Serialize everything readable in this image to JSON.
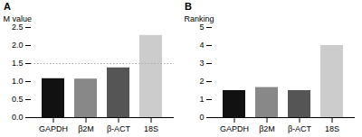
{
  "chart_data": [
    {
      "type": "bar",
      "title": "A",
      "categories": [
        "GAPDH",
        "β2M",
        "β-ACT",
        "18S"
      ],
      "values": [
        1.08,
        1.07,
        1.38,
        2.28
      ],
      "colors": [
        "#111111",
        "#888888",
        "#555555",
        "#cccccc"
      ],
      "ylabel": "M value",
      "ylim": [
        0,
        2.5
      ],
      "yticks": [
        {
          "value": 0.0,
          "label": "0.0"
        },
        0.5,
        {
          "value": 1.0,
          "label": "1.0"
        },
        1.5,
        {
          "value": 2.0,
          "label": "2.0"
        },
        2.5
      ],
      "reference_line": 1.5
    },
    {
      "type": "bar",
      "title": "B",
      "categories": [
        "GAPDH",
        "β2M",
        "β-ACT",
        "18S"
      ],
      "values": [
        1.5,
        1.67,
        1.5,
        4.0
      ],
      "colors": [
        "#111111",
        "#888888",
        "#555555",
        "#cccccc"
      ],
      "ylabel": "Ranking",
      "ylim": [
        0,
        5
      ],
      "yticks": [
        0,
        1,
        2,
        3,
        4,
        5
      ]
    }
  ]
}
